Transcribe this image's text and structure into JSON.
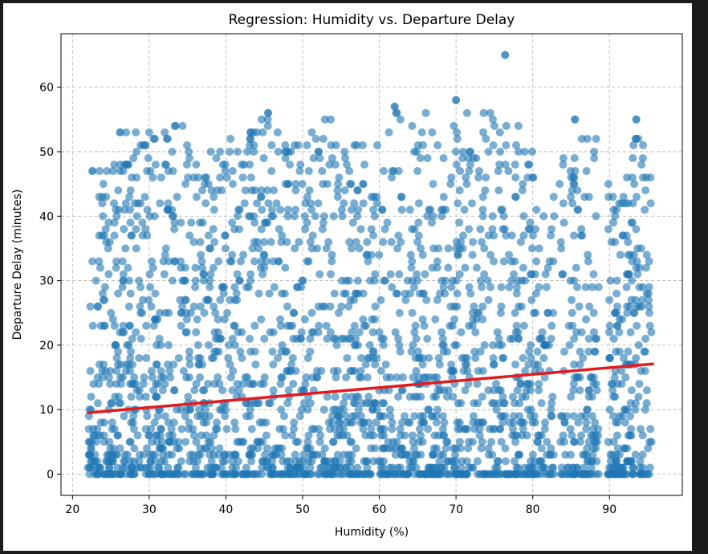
{
  "colors": {
    "points": "#1f77b4",
    "regression_line": "#e41a1c",
    "grid": "#b0b0b0",
    "frame_background": "#1b1b1b"
  },
  "chart_data": {
    "type": "scatter",
    "title": "Regression: Humidity vs. Departure Delay",
    "xlabel": "Humidity (%)",
    "ylabel": "Departure Delay (minutes)",
    "xlim": [
      18.5,
      99.5
    ],
    "ylim": [
      -3.3,
      68.3
    ],
    "xticks": [
      20,
      30,
      40,
      50,
      60,
      70,
      80,
      90
    ],
    "yticks": [
      0,
      10,
      20,
      30,
      40,
      50,
      60
    ],
    "grid": true,
    "point_alpha": 0.6,
    "series": [
      {
        "kind": "scatter-density",
        "density_by_humidity": [
          {
            "x": 22,
            "max_y": 25
          },
          {
            "x": 23,
            "max_y": 47
          },
          {
            "x": 25,
            "max_y": 47
          },
          {
            "x": 26,
            "max_y": 53
          },
          {
            "x": 28,
            "max_y": 54
          },
          {
            "x": 30,
            "max_y": 54
          },
          {
            "x": 32,
            "max_y": 55
          },
          {
            "x": 35,
            "max_y": 55
          },
          {
            "x": 38,
            "max_y": 52
          },
          {
            "x": 40,
            "max_y": 52
          },
          {
            "x": 42,
            "max_y": 52
          },
          {
            "x": 45,
            "max_y": 56
          },
          {
            "x": 48,
            "max_y": 53
          },
          {
            "x": 50,
            "max_y": 50
          },
          {
            "x": 52,
            "max_y": 55
          },
          {
            "x": 55,
            "max_y": 55
          },
          {
            "x": 58,
            "max_y": 52
          },
          {
            "x": 60,
            "max_y": 55
          },
          {
            "x": 62,
            "max_y": 57
          },
          {
            "x": 65,
            "max_y": 56
          },
          {
            "x": 68,
            "max_y": 56
          },
          {
            "x": 70,
            "max_y": 58
          },
          {
            "x": 72,
            "max_y": 56
          },
          {
            "x": 75,
            "max_y": 56
          },
          {
            "x": 78,
            "max_y": 55
          },
          {
            "x": 80,
            "max_y": 50
          },
          {
            "x": 82,
            "max_y": 38
          },
          {
            "x": 84,
            "max_y": 53
          },
          {
            "x": 86,
            "max_y": 55
          },
          {
            "x": 88,
            "max_y": 53
          },
          {
            "x": 90,
            "max_y": 45
          },
          {
            "x": 92,
            "max_y": 48
          },
          {
            "x": 93.5,
            "max_y": 55
          },
          {
            "x": 95.5,
            "max_y": 46
          }
        ],
        "gaps": [
          [
            82.8,
            83.5
          ],
          [
            88.6,
            89.8
          ]
        ],
        "outliers": [
          {
            "x": 76.4,
            "y": 65
          },
          {
            "x": 93.5,
            "y": 55
          },
          {
            "x": 70,
            "y": 58
          },
          {
            "x": 62,
            "y": 57
          },
          {
            "x": 45.5,
            "y": 56
          },
          {
            "x": 85.5,
            "y": 55
          },
          {
            "x": 22.6,
            "y": 47
          },
          {
            "x": 26.2,
            "y": 53
          },
          {
            "x": 29.5,
            "y": 51
          }
        ]
      },
      {
        "kind": "regression-line",
        "x": [
          21.9,
          95.8
        ],
        "y": [
          9.5,
          17.1
        ]
      }
    ]
  }
}
